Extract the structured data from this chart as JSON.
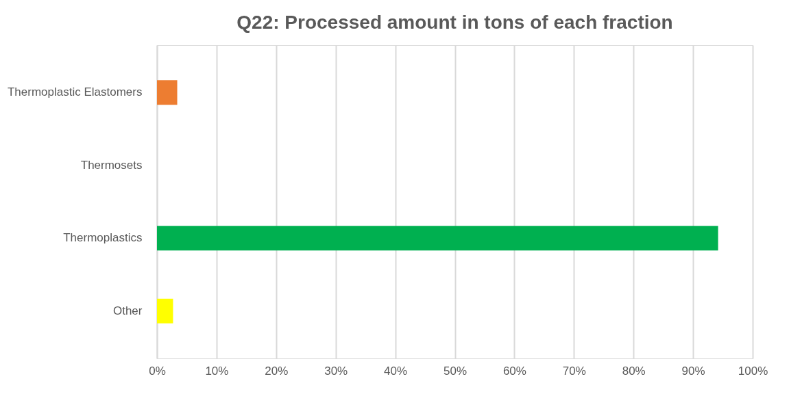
{
  "chart_data": {
    "type": "bar",
    "orientation": "horizontal",
    "title": "Q22: Processed amount in tons of each fraction",
    "categories": [
      "Thermoplastic Elastomers",
      "Thermosets",
      "Thermoplastics",
      "Other"
    ],
    "values": [
      3.4,
      0,
      94.2,
      2.7
    ],
    "colors": [
      "#ed7d31",
      "#a5a5a5",
      "#00b050",
      "#ffff00"
    ],
    "xlim": [
      0,
      100
    ],
    "xticks": [
      {
        "value": 0,
        "label": "0%"
      },
      {
        "value": 10,
        "label": "10%"
      },
      {
        "value": 20,
        "label": "20%"
      },
      {
        "value": 30,
        "label": "30%"
      },
      {
        "value": 40,
        "label": "40%"
      },
      {
        "value": 50,
        "label": "50%"
      },
      {
        "value": 60,
        "label": "60%"
      },
      {
        "value": 70,
        "label": "70%"
      },
      {
        "value": 80,
        "label": "80%"
      },
      {
        "value": 90,
        "label": "90%"
      },
      {
        "value": 100,
        "label": "100%"
      }
    ],
    "grid": "x"
  }
}
